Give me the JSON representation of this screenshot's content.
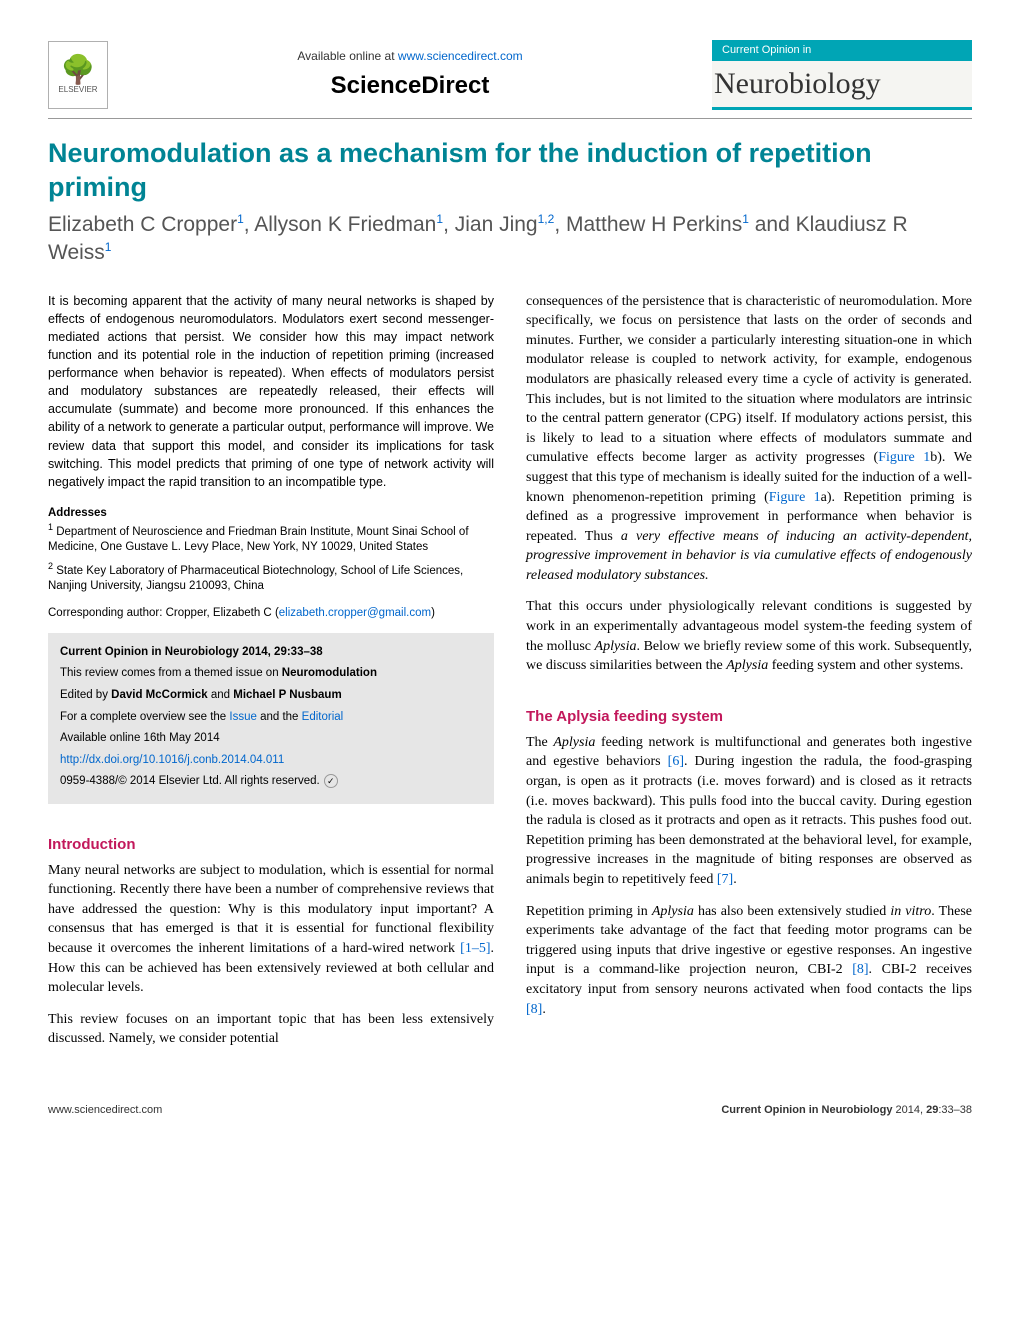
{
  "header": {
    "available_text": "Available online at ",
    "available_url": "www.sciencedirect.com",
    "sciencedirect": "ScienceDirect",
    "elsevier_label": "ELSEVIER",
    "journal_prefix": "Current Opinion in",
    "journal_name": "Neurobiology"
  },
  "article": {
    "title": "Neuromodulation as a mechanism for the induction of repetition priming",
    "authors_html": "Elizabeth C Cropper<sup>1</sup>, Allyson K Friedman<sup>1</sup>, Jian Jing<sup>1,2</sup>, Matthew H Perkins<sup>1</sup> and Klaudiusz R Weiss<sup>1</sup>"
  },
  "abstract": "It is becoming apparent that the activity of many neural networks is shaped by effects of endogenous neuromodulators. Modulators exert second messenger-mediated actions that persist. We consider how this may impact network function and its potential role in the induction of repetition priming (increased performance when behavior is repeated). When effects of modulators persist and modulatory substances are repeatedly released, their effects will accumulate (summate) and become more pronounced. If this enhances the ability of a network to generate a particular output, performance will improve. We review data that support this model, and consider its implications for task switching. This model predicts that priming of one type of network activity will negatively impact the rapid transition to an incompatible type.",
  "addresses": {
    "heading": "Addresses",
    "items": [
      {
        "sup": "1",
        "text": "Department of Neuroscience and Friedman Brain Institute, Mount Sinai School of Medicine, One Gustave L. Levy Place, New York, NY 10029, United States"
      },
      {
        "sup": "2",
        "text": "State Key Laboratory of Pharmaceutical Biotechnology, School of Life Sciences, Nanjing University, Jiangsu 210093, China"
      }
    ]
  },
  "corresponding": {
    "label": "Corresponding author: Cropper, Elizabeth C",
    "email": "elizabeth.cropper@gmail.com"
  },
  "infobox": {
    "ref": "Current Opinion in Neurobiology 2014, 29:33–38",
    "themed": "This review comes from a themed issue on Neuromodulation",
    "edited": "Edited by David McCormick and Michael P Nusbaum",
    "overview_pre": "For a complete overview see the ",
    "overview_issue": "Issue",
    "overview_and": " and the ",
    "overview_editorial": "Editorial",
    "avail": "Available online 16th May 2014",
    "doi": "http://dx.doi.org/10.1016/j.conb.2014.04.011",
    "issn": "0959-4388/© 2014 Elsevier Ltd. All rights reserved."
  },
  "intro": {
    "heading": "Introduction",
    "p1_pre": "Many neural networks are subject to modulation, which is essential for normal functioning. Recently there have been a number of comprehensive reviews that have addressed the question: Why is this modulatory input important? A consensus that has emerged is that it is essential for functional flexibility because it overcomes the inherent limitations of a hard-wired network ",
    "p1_ref": "[1–5]",
    "p1_post": ". How this can be achieved has been extensively reviewed at both cellular and molecular levels.",
    "p2": "This review focuses on an important topic that has been less extensively discussed. Namely, we consider potential"
  },
  "col2": {
    "p1_a": "consequences of the persistence that is characteristic of neuromodulation. More specifically, we focus on persistence that lasts on the order of seconds and minutes. Further, we consider a particularly interesting situation-one in which modulator release is coupled to network activity, for example, endogenous modulators are phasically released every time a cycle of activity is generated. This includes, but is not limited to the situation where modulators are intrinsic to the central pattern generator (CPG) itself. If modulatory actions persist, this is likely to lead to a situation where effects of modulators summate and cumulative effects become larger as activity progresses (",
    "p1_fig1b": "Figure 1",
    "p1_b": "b). We suggest that this type of mechanism is ideally suited for the induction of a well-known phenomenon-repetition priming (",
    "p1_fig1a": "Figure 1",
    "p1_c": "a). Repetition priming is defined as a progressive improvement in performance when behavior is repeated. Thus ",
    "p1_ital": "a very effective means of inducing an activity-dependent, progressive improvement in behavior is via cumulative effects of endogenously released modulatory substances.",
    "p2": "That this occurs under physiologically relevant conditions is suggested by work in an experimentally advantageous model system-the feeding system of the mollusc Aplysia. Below we briefly review some of this work. Subsequently, we discuss similarities between the Aplysia feeding system and other systems."
  },
  "aplysia": {
    "heading": "The Aplysia feeding system",
    "p1_a": "The Aplysia feeding network is multifunctional and generates both ingestive and egestive behaviors ",
    "p1_ref6": "[6]",
    "p1_b": ". During ingestion the radula, the food-grasping organ, is open as it protracts (i.e. moves forward) and is closed as it retracts (i.e. moves backward). This pulls food into the buccal cavity. During egestion the radula is closed as it protracts and open as it retracts. This pushes food out. Repetition priming has been demonstrated at the behavioral level, for example, progressive increases in the magnitude of biting responses are observed as animals begin to repetitively feed ",
    "p1_ref7": "[7]",
    "p1_c": ".",
    "p2_a": "Repetition priming in Aplysia has also been extensively studied in vitro. These experiments take advantage of the fact that feeding motor programs can be triggered using inputs that drive ingestive or egestive responses. An ingestive input is a command-like projection neuron, CBI-2 ",
    "p2_ref8a": "[8]",
    "p2_b": ". CBI-2 receives excitatory input from sensory neurons activated when food contacts the lips ",
    "p2_ref8b": "[8]",
    "p2_c": "."
  },
  "footer": {
    "left": "www.sciencedirect.com",
    "right": "Current Opinion in Neurobiology 2014, 29:33–38"
  },
  "colors": {
    "teal": "#008494",
    "link": "#0066cc",
    "heading": "#c2185b",
    "badge": "#00a5b5"
  }
}
